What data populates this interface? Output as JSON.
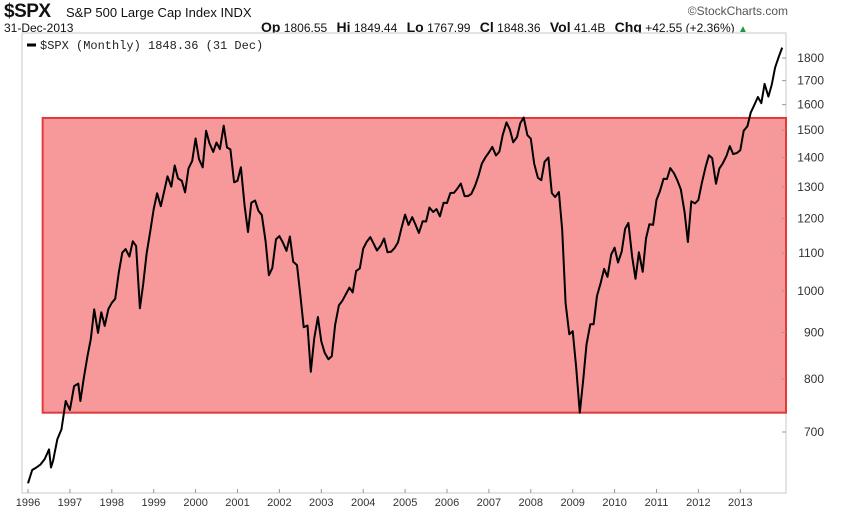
{
  "header": {
    "symbol": "$SPX",
    "name": "S&P 500 Large Cap Index",
    "exchange": "INDX",
    "credit": "©StockCharts.com",
    "date": "31-Dec-2013",
    "op_label": "Op",
    "op": "1806.55",
    "hi_label": "Hi",
    "hi": "1849.44",
    "lo_label": "Lo",
    "lo": "1767.99",
    "cl_label": "Cl",
    "cl": "1848.36",
    "vol_label": "Vol",
    "vol": "41.4B",
    "chg_label": "Chg",
    "chg": "+42.55 (+2.36%)",
    "chg_icon": "triangle-up-icon"
  },
  "chart_data": {
    "type": "line",
    "legend": "$SPX (Monthly) 1848.36 (31 Dec)",
    "legend_position": "top-left",
    "yscale": "log",
    "ylim": [
      595,
      1900
    ],
    "xlim": [
      1996,
      2014
    ],
    "y_ticks": [
      "1800",
      "1700",
      "1600",
      "1500",
      "1400",
      "1300",
      "1200",
      "1100",
      "1000",
      "900",
      "800",
      "700"
    ],
    "x_ticks": [
      "1996",
      "1997",
      "1998",
      "1999",
      "2000",
      "2001",
      "2002",
      "2003",
      "2004",
      "2005",
      "2006",
      "2007",
      "2008",
      "2009",
      "2010",
      "2011",
      "2012",
      "2013"
    ],
    "highlight_band": {
      "from_year": 1996.35,
      "y_low": 735,
      "y_high": 1547,
      "color": "#f7999a",
      "border": "#e23a3a"
    },
    "line_color": "#000000",
    "series": [
      {
        "name": "$SPX",
        "points": [
          [
            1996.0,
            615
          ],
          [
            1996.1,
            636
          ],
          [
            1996.2,
            640
          ],
          [
            1996.3,
            645
          ],
          [
            1996.4,
            654
          ],
          [
            1996.5,
            670
          ],
          [
            1996.55,
            640
          ],
          [
            1996.6,
            651
          ],
          [
            1996.7,
            687
          ],
          [
            1996.8,
            705
          ],
          [
            1996.9,
            757
          ],
          [
            1997.0,
            740
          ],
          [
            1997.1,
            786
          ],
          [
            1997.2,
            791
          ],
          [
            1997.25,
            757
          ],
          [
            1997.33,
            801
          ],
          [
            1997.42,
            848
          ],
          [
            1997.5,
            885
          ],
          [
            1997.58,
            954
          ],
          [
            1997.67,
            899
          ],
          [
            1997.75,
            947
          ],
          [
            1997.83,
            915
          ],
          [
            1997.92,
            955
          ],
          [
            1998.0,
            970
          ],
          [
            1998.08,
            980
          ],
          [
            1998.17,
            1049
          ],
          [
            1998.25,
            1101
          ],
          [
            1998.33,
            1111
          ],
          [
            1998.42,
            1090
          ],
          [
            1998.5,
            1133
          ],
          [
            1998.58,
            1120
          ],
          [
            1998.67,
            957
          ],
          [
            1998.75,
            1017
          ],
          [
            1998.83,
            1098
          ],
          [
            1998.92,
            1163
          ],
          [
            1999.0,
            1229
          ],
          [
            1999.08,
            1279
          ],
          [
            1999.17,
            1238
          ],
          [
            1999.25,
            1286
          ],
          [
            1999.33,
            1335
          ],
          [
            1999.42,
            1301
          ],
          [
            1999.5,
            1372
          ],
          [
            1999.58,
            1328
          ],
          [
            1999.67,
            1320
          ],
          [
            1999.75,
            1282
          ],
          [
            1999.83,
            1362
          ],
          [
            1999.92,
            1388
          ],
          [
            2000.0,
            1469
          ],
          [
            2000.08,
            1394
          ],
          [
            2000.17,
            1366
          ],
          [
            2000.25,
            1498
          ],
          [
            2000.33,
            1452
          ],
          [
            2000.42,
            1420
          ],
          [
            2000.5,
            1454
          ],
          [
            2000.58,
            1430
          ],
          [
            2000.67,
            1517
          ],
          [
            2000.75,
            1436
          ],
          [
            2000.83,
            1429
          ],
          [
            2000.92,
            1315
          ],
          [
            2001.0,
            1320
          ],
          [
            2001.08,
            1366
          ],
          [
            2001.17,
            1240
          ],
          [
            2001.25,
            1160
          ],
          [
            2001.33,
            1249
          ],
          [
            2001.42,
            1256
          ],
          [
            2001.5,
            1224
          ],
          [
            2001.58,
            1211
          ],
          [
            2001.67,
            1133
          ],
          [
            2001.75,
            1040
          ],
          [
            2001.83,
            1059
          ],
          [
            2001.92,
            1139
          ],
          [
            2002.0,
            1148
          ],
          [
            2002.08,
            1130
          ],
          [
            2002.17,
            1106
          ],
          [
            2002.25,
            1147
          ],
          [
            2002.33,
            1076
          ],
          [
            2002.42,
            1067
          ],
          [
            2002.5,
            990
          ],
          [
            2002.58,
            912
          ],
          [
            2002.67,
            916
          ],
          [
            2002.75,
            815
          ],
          [
            2002.83,
            886
          ],
          [
            2002.92,
            936
          ],
          [
            2003.0,
            880
          ],
          [
            2003.08,
            855
          ],
          [
            2003.17,
            841
          ],
          [
            2003.25,
            848
          ],
          [
            2003.33,
            917
          ],
          [
            2003.42,
            964
          ],
          [
            2003.5,
            975
          ],
          [
            2003.58,
            990
          ],
          [
            2003.67,
            1008
          ],
          [
            2003.75,
            996
          ],
          [
            2003.83,
            1051
          ],
          [
            2003.92,
            1058
          ],
          [
            2004.0,
            1112
          ],
          [
            2004.08,
            1131
          ],
          [
            2004.17,
            1145
          ],
          [
            2004.25,
            1126
          ],
          [
            2004.33,
            1107
          ],
          [
            2004.42,
            1121
          ],
          [
            2004.5,
            1141
          ],
          [
            2004.58,
            1102
          ],
          [
            2004.67,
            1104
          ],
          [
            2004.75,
            1114
          ],
          [
            2004.83,
            1130
          ],
          [
            2004.92,
            1174
          ],
          [
            2005.0,
            1212
          ],
          [
            2005.08,
            1181
          ],
          [
            2005.17,
            1204
          ],
          [
            2005.25,
            1181
          ],
          [
            2005.33,
            1157
          ],
          [
            2005.42,
            1192
          ],
          [
            2005.5,
            1191
          ],
          [
            2005.58,
            1234
          ],
          [
            2005.67,
            1220
          ],
          [
            2005.75,
            1229
          ],
          [
            2005.83,
            1207
          ],
          [
            2005.92,
            1249
          ],
          [
            2006.0,
            1248
          ],
          [
            2006.08,
            1280
          ],
          [
            2006.17,
            1281
          ],
          [
            2006.25,
            1295
          ],
          [
            2006.33,
            1311
          ],
          [
            2006.42,
            1270
          ],
          [
            2006.5,
            1270
          ],
          [
            2006.58,
            1277
          ],
          [
            2006.67,
            1304
          ],
          [
            2006.75,
            1336
          ],
          [
            2006.83,
            1378
          ],
          [
            2006.92,
            1401
          ],
          [
            2007.0,
            1418
          ],
          [
            2007.08,
            1438
          ],
          [
            2007.17,
            1407
          ],
          [
            2007.25,
            1421
          ],
          [
            2007.33,
            1482
          ],
          [
            2007.42,
            1530
          ],
          [
            2007.5,
            1503
          ],
          [
            2007.58,
            1455
          ],
          [
            2007.67,
            1474
          ],
          [
            2007.75,
            1527
          ],
          [
            2007.83,
            1549
          ],
          [
            2007.92,
            1481
          ],
          [
            2008.0,
            1468
          ],
          [
            2008.08,
            1378
          ],
          [
            2008.17,
            1330
          ],
          [
            2008.25,
            1322
          ],
          [
            2008.33,
            1385
          ],
          [
            2008.42,
            1400
          ],
          [
            2008.5,
            1280
          ],
          [
            2008.58,
            1267
          ],
          [
            2008.67,
            1283
          ],
          [
            2008.75,
            1166
          ],
          [
            2008.83,
            969
          ],
          [
            2008.92,
            896
          ],
          [
            2009.0,
            903
          ],
          [
            2009.08,
            826
          ],
          [
            2009.17,
            735
          ],
          [
            2009.25,
            798
          ],
          [
            2009.33,
            873
          ],
          [
            2009.42,
            919
          ],
          [
            2009.5,
            919
          ],
          [
            2009.58,
            987
          ],
          [
            2009.67,
            1021
          ],
          [
            2009.75,
            1057
          ],
          [
            2009.83,
            1036
          ],
          [
            2009.92,
            1096
          ],
          [
            2010.0,
            1115
          ],
          [
            2010.08,
            1074
          ],
          [
            2010.17,
            1104
          ],
          [
            2010.25,
            1169
          ],
          [
            2010.33,
            1187
          ],
          [
            2010.42,
            1089
          ],
          [
            2010.5,
            1031
          ],
          [
            2010.58,
            1102
          ],
          [
            2010.67,
            1049
          ],
          [
            2010.75,
            1141
          ],
          [
            2010.83,
            1183
          ],
          [
            2010.92,
            1181
          ],
          [
            2011.0,
            1258
          ],
          [
            2011.08,
            1286
          ],
          [
            2011.17,
            1327
          ],
          [
            2011.25,
            1326
          ],
          [
            2011.33,
            1363
          ],
          [
            2011.42,
            1345
          ],
          [
            2011.5,
            1321
          ],
          [
            2011.58,
            1292
          ],
          [
            2011.67,
            1219
          ],
          [
            2011.75,
            1131
          ],
          [
            2011.83,
            1253
          ],
          [
            2011.92,
            1247
          ],
          [
            2012.0,
            1258
          ],
          [
            2012.08,
            1312
          ],
          [
            2012.17,
            1366
          ],
          [
            2012.25,
            1408
          ],
          [
            2012.33,
            1398
          ],
          [
            2012.42,
            1310
          ],
          [
            2012.5,
            1362
          ],
          [
            2012.58,
            1379
          ],
          [
            2012.67,
            1406
          ],
          [
            2012.75,
            1441
          ],
          [
            2012.83,
            1412
          ],
          [
            2012.92,
            1416
          ],
          [
            2013.0,
            1426
          ],
          [
            2013.08,
            1498
          ],
          [
            2013.17,
            1515
          ],
          [
            2013.25,
            1569
          ],
          [
            2013.33,
            1597
          ],
          [
            2013.42,
            1631
          ],
          [
            2013.5,
            1606
          ],
          [
            2013.58,
            1686
          ],
          [
            2013.67,
            1633
          ],
          [
            2013.75,
            1682
          ],
          [
            2013.83,
            1757
          ],
          [
            2013.92,
            1806
          ],
          [
            2014.0,
            1848
          ]
        ]
      }
    ]
  }
}
